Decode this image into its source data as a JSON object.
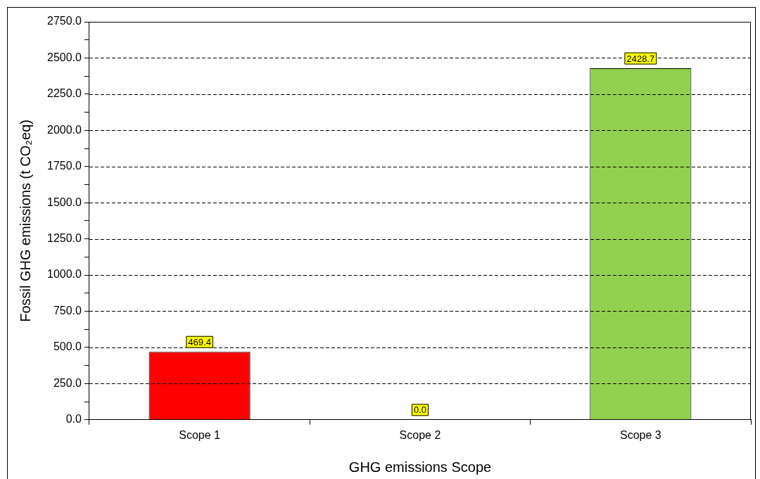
{
  "chart_data": {
    "type": "bar",
    "xlabel": "GHG emissions Scope",
    "ylabel": "Fossil GHG emissions (t CO₂eq)",
    "categories": [
      "Scope 1",
      "Scope 2",
      "Scope 3"
    ],
    "values": [
      469.4,
      0,
      2428.7
    ],
    "colors": [
      "#ff0000",
      "#00b050",
      "#92d050"
    ],
    "value_labels": [
      "469.4",
      "0.0",
      "2428.7"
    ],
    "ylim": [
      0,
      2750
    ],
    "yticks": [
      {
        "value": 0,
        "label": "0.0"
      },
      {
        "value": 125,
        "label": null
      },
      {
        "value": 250,
        "label": "250.0"
      },
      {
        "value": 375,
        "label": null
      },
      {
        "value": 500,
        "label": "500.0"
      },
      {
        "value": 625,
        "label": null
      },
      {
        "value": 750,
        "label": "750.0"
      },
      {
        "value": 875,
        "label": null
      },
      {
        "value": 1000,
        "label": "1000.0"
      },
      {
        "value": 1125,
        "label": null
      },
      {
        "value": 1250,
        "label": "1250.0"
      },
      {
        "value": 1375,
        "label": null
      },
      {
        "value": 1500,
        "label": "1500.0"
      },
      {
        "value": 1625,
        "label": null
      },
      {
        "value": 1750,
        "label": "1750.0"
      },
      {
        "value": 1875,
        "label": null
      },
      {
        "value": 2000,
        "label": "2000.0"
      },
      {
        "value": 2125,
        "label": null
      },
      {
        "value": 2250,
        "label": "2250.0"
      },
      {
        "value": 2375,
        "label": null
      },
      {
        "value": 2500,
        "label": "2500.0"
      },
      {
        "value": 2625,
        "label": null
      },
      {
        "value": 2750,
        "label": "2750.0"
      }
    ],
    "grid": "y",
    "legend": false
  }
}
